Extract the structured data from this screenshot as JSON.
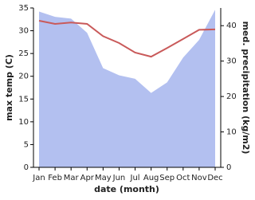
{
  "chart_data": {
    "type": "line",
    "x_label": "date (month)",
    "y_label": "max temp (C)",
    "y2_label": "med. precipitation (kg/m2)",
    "categories": [
      "Jan",
      "Feb",
      "Mar",
      "Apr",
      "May",
      "Jun",
      "Jul",
      "Aug",
      "Sep",
      "Oct",
      "Nov",
      "Dec"
    ],
    "ylim": [
      0,
      35
    ],
    "yticks": [
      0,
      5,
      10,
      15,
      20,
      25,
      30,
      35
    ],
    "y2lim": [
      0,
      45
    ],
    "y2ticks": [
      0,
      10,
      20,
      30,
      40
    ],
    "series": [
      {
        "name": "med. precipitation",
        "type": "area",
        "axis": "y2",
        "color": "#b3c0f0",
        "values": [
          44,
          42.5,
          42,
          38,
          28,
          26,
          25,
          21,
          24,
          31,
          36,
          44.5
        ]
      },
      {
        "name": "max temp",
        "type": "line",
        "color": "#c95a5a",
        "values": [
          32.2,
          31.5,
          31.8,
          31.5,
          28.8,
          27.3,
          25.2,
          24.3,
          26.2,
          28.2,
          30.2,
          30.3
        ]
      }
    ]
  }
}
